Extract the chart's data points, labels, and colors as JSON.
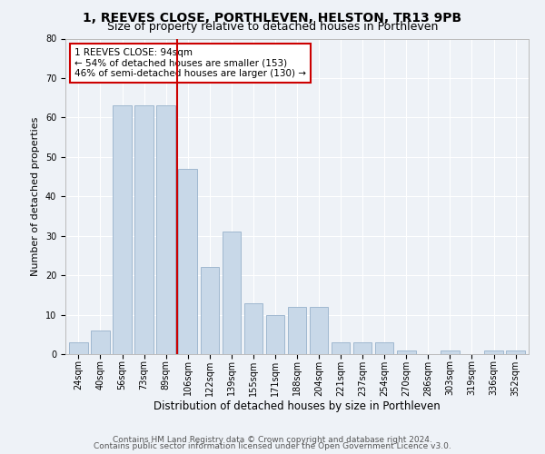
{
  "title1": "1, REEVES CLOSE, PORTHLEVEN, HELSTON, TR13 9PB",
  "title2": "Size of property relative to detached houses in Porthleven",
  "xlabel": "Distribution of detached houses by size in Porthleven",
  "ylabel": "Number of detached properties",
  "categories": [
    "24sqm",
    "40sqm",
    "56sqm",
    "73sqm",
    "89sqm",
    "106sqm",
    "122sqm",
    "139sqm",
    "155sqm",
    "171sqm",
    "188sqm",
    "204sqm",
    "221sqm",
    "237sqm",
    "254sqm",
    "270sqm",
    "286sqm",
    "303sqm",
    "319sqm",
    "336sqm",
    "352sqm"
  ],
  "values": [
    3,
    6,
    63,
    63,
    63,
    47,
    22,
    31,
    13,
    10,
    12,
    12,
    3,
    3,
    3,
    1,
    0,
    1,
    0,
    1,
    1
  ],
  "bar_color": "#c8d8e8",
  "bar_edgecolor": "#a0b8d0",
  "vline_x": 4.5,
  "vline_color": "#cc0000",
  "annotation_text": "1 REEVES CLOSE: 94sqm\n← 54% of detached houses are smaller (153)\n46% of semi-detached houses are larger (130) →",
  "ylim": [
    0,
    80
  ],
  "yticks": [
    0,
    10,
    20,
    30,
    40,
    50,
    60,
    70,
    80
  ],
  "footer1": "Contains HM Land Registry data © Crown copyright and database right 2024.",
  "footer2": "Contains public sector information licensed under the Open Government Licence v3.0.",
  "bg_color": "#eef2f7",
  "plot_bg_color": "#eef2f7",
  "grid_color": "#ffffff",
  "title1_fontsize": 10,
  "title2_fontsize": 9,
  "xlabel_fontsize": 8.5,
  "ylabel_fontsize": 8,
  "tick_fontsize": 7,
  "annotation_fontsize": 7.5,
  "footer_fontsize": 6.5
}
